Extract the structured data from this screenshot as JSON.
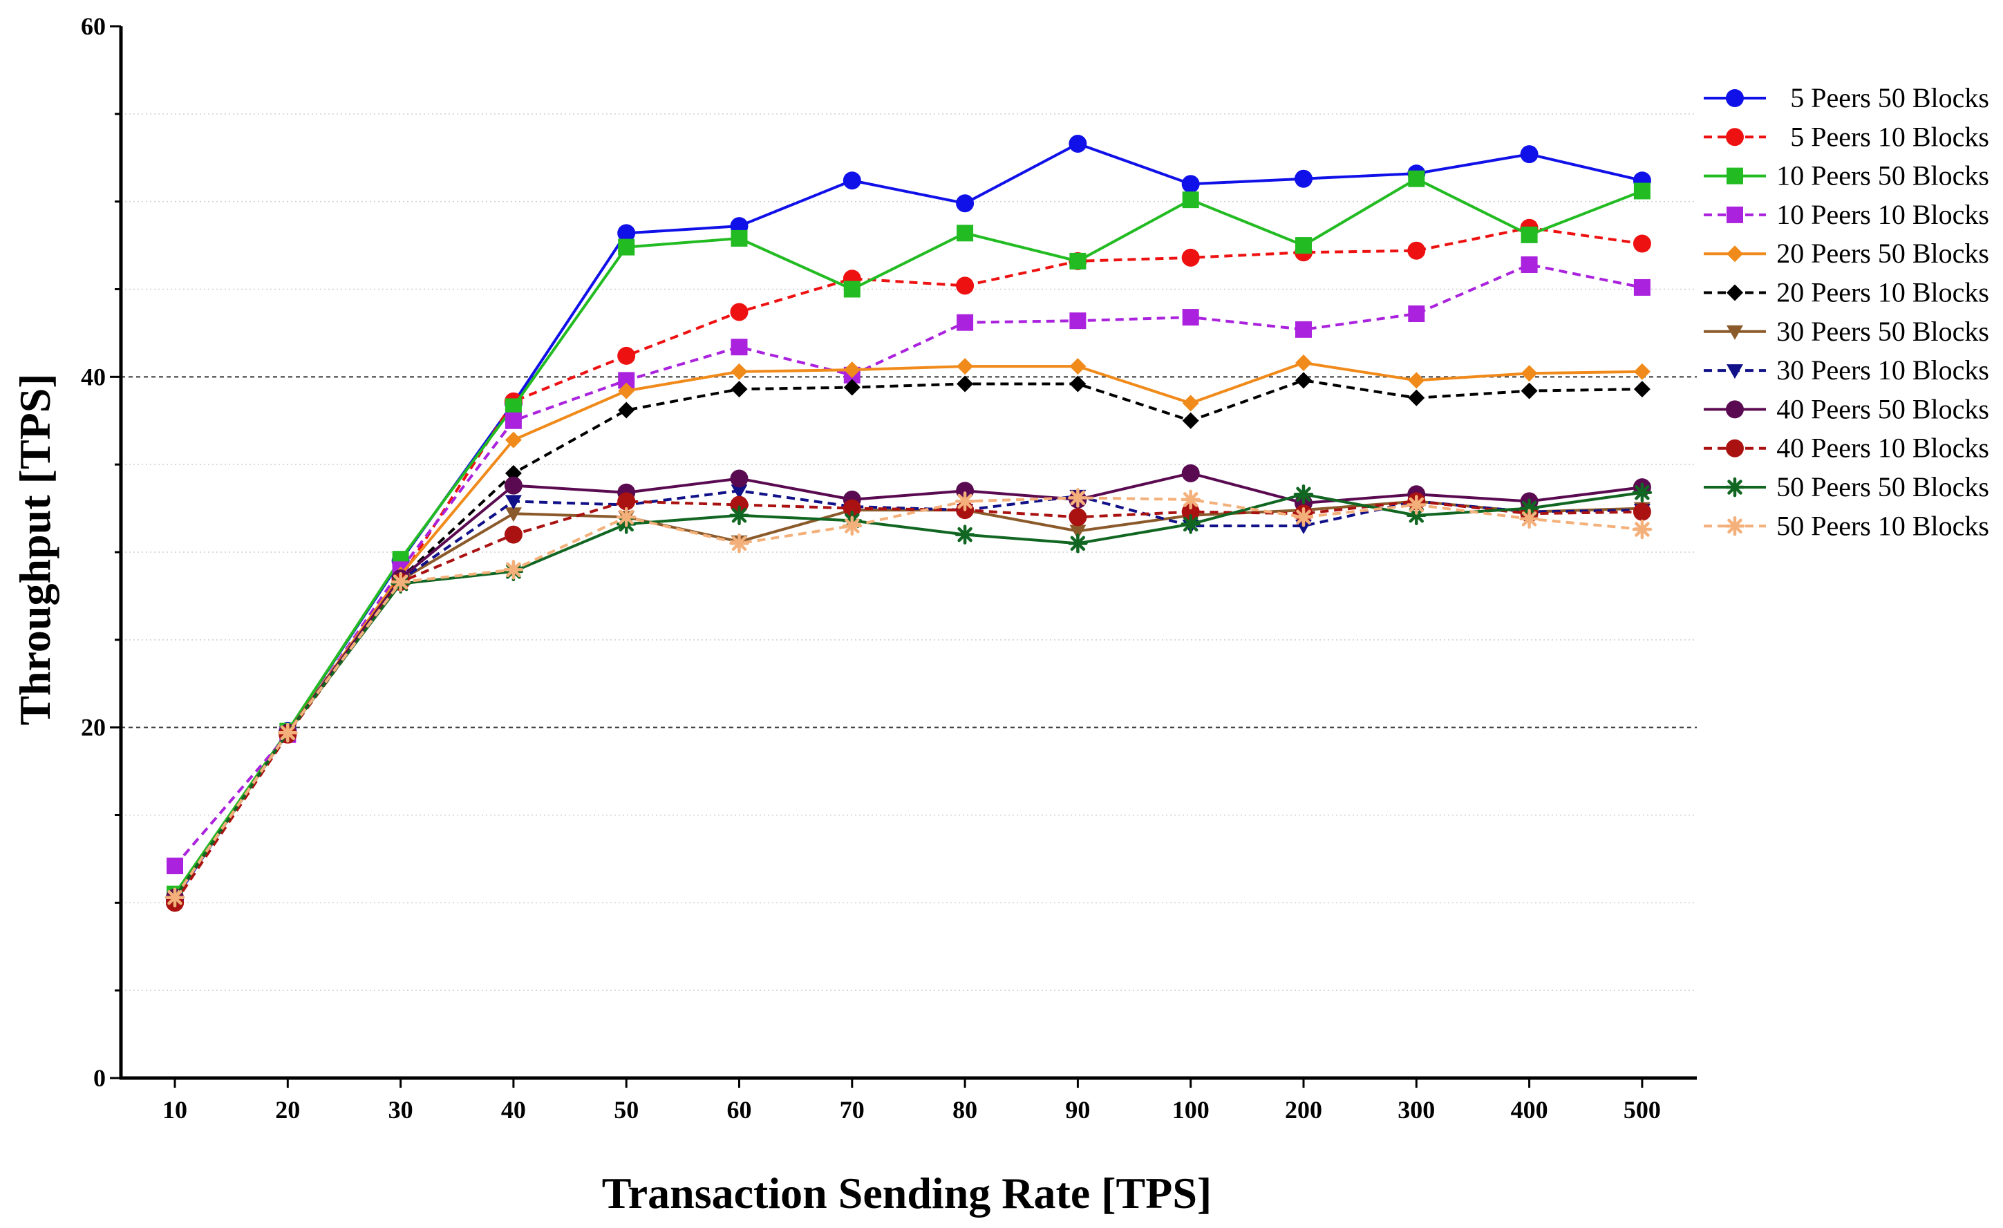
{
  "chart_data": {
    "type": "line",
    "title": "",
    "xlabel": "Transaction Sending Rate [TPS]",
    "ylabel": "Throughput [TPS]",
    "categories": [
      "10",
      "20",
      "30",
      "40",
      "50",
      "60",
      "70",
      "80",
      "90",
      "100",
      "200",
      "300",
      "400",
      "500"
    ],
    "ylim": [
      0,
      60
    ],
    "yticks": [
      "0",
      "20",
      "40",
      "60"
    ],
    "grid": "horizontal",
    "legend_position": "top-right",
    "series": [
      {
        "name": "5 Peers 50 Blocks",
        "color": "#1010e8",
        "dash": "solid",
        "marker": "circle",
        "values": [
          10.2,
          19.8,
          29.5,
          38.5,
          48.2,
          48.6,
          51.2,
          49.9,
          53.3,
          51.0,
          51.3,
          51.6,
          52.7,
          51.2
        ]
      },
      {
        "name": "5 Peers 10 Blocks",
        "color": "#ee1111",
        "dash": "dashed",
        "marker": "circle",
        "values": [
          10.0,
          19.6,
          28.5,
          38.6,
          41.2,
          43.7,
          45.6,
          45.2,
          46.6,
          46.8,
          47.1,
          47.2,
          48.5,
          47.6
        ]
      },
      {
        "name": "10 Peers 50 Blocks",
        "color": "#22bb22",
        "dash": "solid",
        "marker": "square",
        "values": [
          10.5,
          19.8,
          29.6,
          38.3,
          47.4,
          47.9,
          45.0,
          48.2,
          46.6,
          50.1,
          47.5,
          51.3,
          48.1,
          50.6
        ]
      },
      {
        "name": "10 Peers 10 Blocks",
        "color": "#aa22dd",
        "dash": "dashed",
        "marker": "square",
        "values": [
          12.1,
          19.6,
          29.0,
          37.5,
          39.8,
          41.7,
          40.1,
          43.1,
          43.2,
          43.4,
          42.7,
          43.6,
          46.4,
          45.1
        ]
      },
      {
        "name": "20 Peers 50 Blocks",
        "color": "#f08a1a",
        "dash": "solid",
        "marker": "diamond",
        "values": [
          10.3,
          19.7,
          28.7,
          36.4,
          39.2,
          40.3,
          40.4,
          40.6,
          40.6,
          38.5,
          40.8,
          39.8,
          40.2,
          40.3
        ]
      },
      {
        "name": "20 Peers 10 Blocks",
        "color": "#000000",
        "dash": "dashed",
        "marker": "diamond",
        "values": [
          10.3,
          19.7,
          28.5,
          34.5,
          38.1,
          39.3,
          39.4,
          39.6,
          39.6,
          37.5,
          39.8,
          38.8,
          39.2,
          39.3
        ]
      },
      {
        "name": "30 Peers 50 Blocks",
        "color": "#8b5a2b",
        "dash": "solid",
        "marker": "tri-down",
        "values": [
          10.3,
          19.7,
          28.4,
          32.2,
          32.0,
          30.6,
          32.4,
          32.4,
          31.2,
          32.1,
          32.4,
          32.9,
          32.3,
          32.5
        ]
      },
      {
        "name": "30 Peers 10 Blocks",
        "color": "#101088",
        "dash": "dashed",
        "marker": "tri-down",
        "values": [
          10.3,
          19.7,
          28.4,
          32.9,
          32.7,
          33.5,
          32.6,
          32.4,
          33.2,
          31.5,
          31.5,
          32.9,
          32.3,
          32.4
        ]
      },
      {
        "name": "40 Peers 50 Blocks",
        "color": "#5a0a50",
        "dash": "solid",
        "marker": "circle",
        "values": [
          10.3,
          19.7,
          28.5,
          33.8,
          33.4,
          34.2,
          33.0,
          33.5,
          33.0,
          34.5,
          32.8,
          33.3,
          32.9,
          33.7
        ]
      },
      {
        "name": "40 Peers 10 Blocks",
        "color": "#aa1111",
        "dash": "dashed",
        "marker": "circle",
        "values": [
          10.0,
          19.6,
          28.3,
          31.0,
          32.9,
          32.7,
          32.5,
          32.4,
          32.0,
          32.3,
          32.2,
          32.9,
          32.2,
          32.3
        ]
      },
      {
        "name": "50 Peers 50 Blocks",
        "color": "#116622",
        "dash": "solid",
        "marker": "star",
        "values": [
          10.3,
          19.7,
          28.2,
          28.9,
          31.6,
          32.1,
          31.8,
          31.0,
          30.5,
          31.6,
          33.3,
          32.1,
          32.5,
          33.4
        ]
      },
      {
        "name": "50 Peers 10 Blocks",
        "color": "#f4b07a",
        "dash": "dashed",
        "marker": "star",
        "values": [
          10.3,
          19.7,
          28.3,
          29.0,
          32.0,
          30.5,
          31.5,
          32.9,
          33.1,
          33.0,
          32.0,
          32.7,
          31.9,
          31.3
        ]
      }
    ]
  }
}
